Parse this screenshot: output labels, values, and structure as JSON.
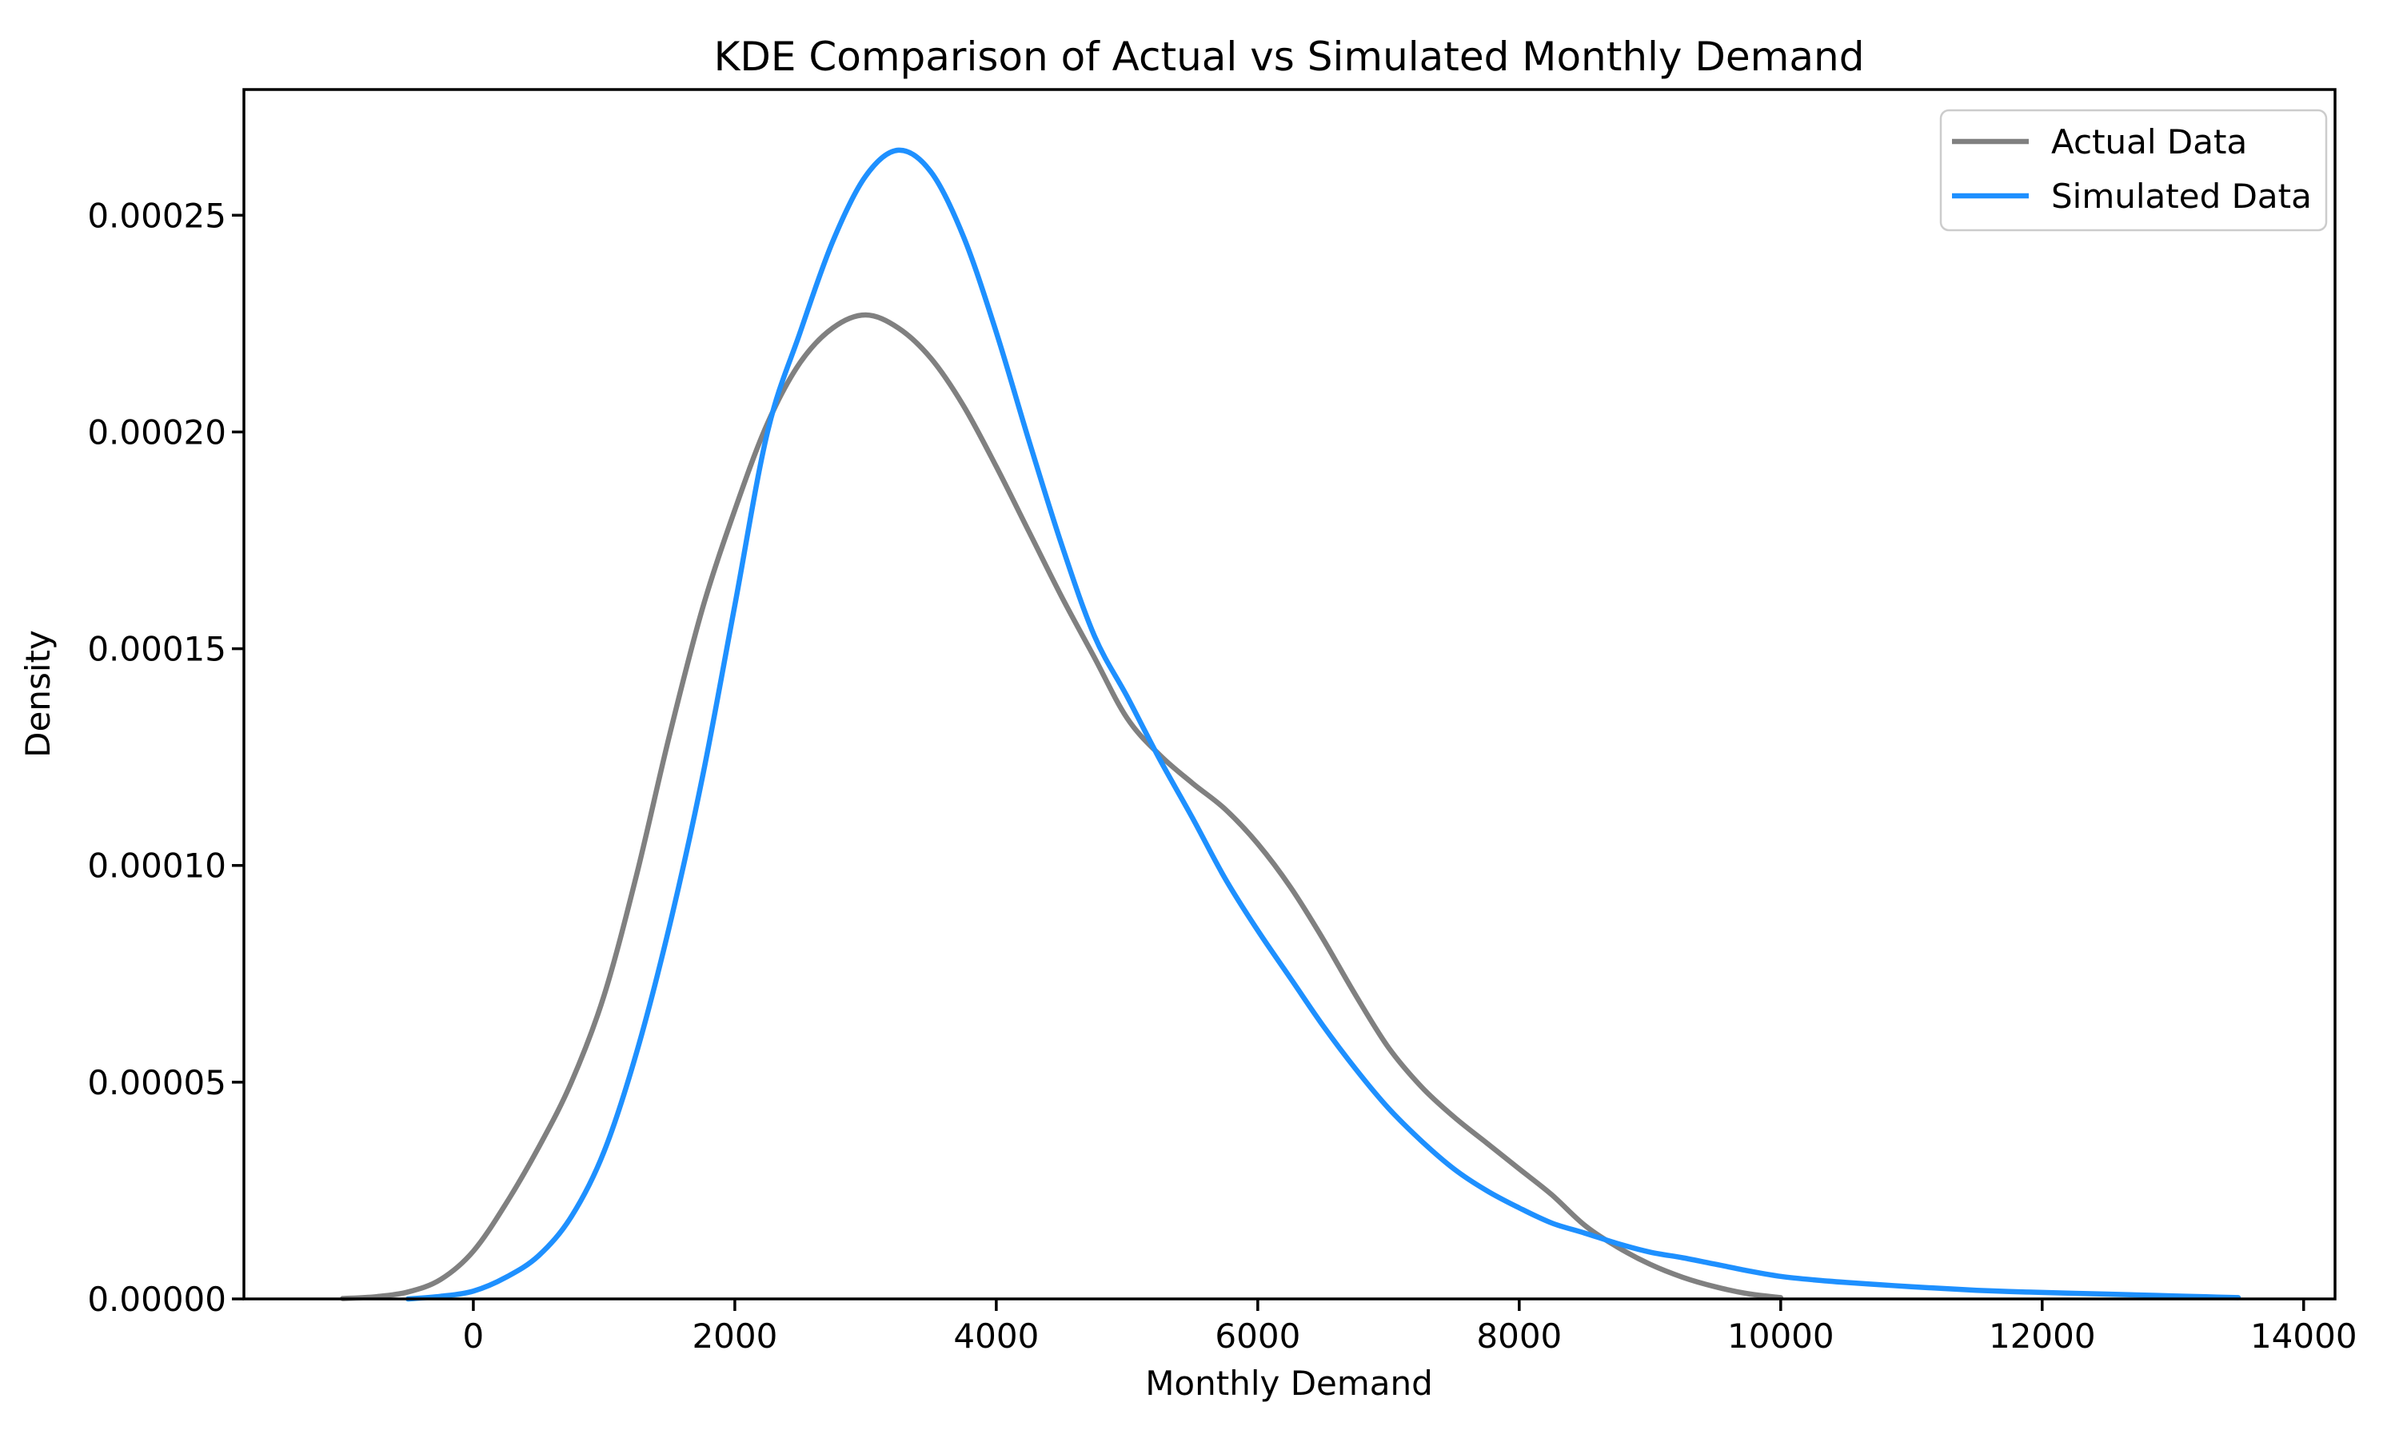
{
  "chart_data": {
    "type": "line",
    "subtype": "kde-density",
    "title": "KDE Comparison of Actual vs Simulated Monthly Demand",
    "xlabel": "Monthly Demand",
    "ylabel": "Density",
    "xlim": [
      -1755,
      14240
    ],
    "ylim": [
      0,
      0.000279
    ],
    "grid": false,
    "x_tick_values": [
      0,
      2000,
      4000,
      6000,
      8000,
      10000,
      12000,
      14000
    ],
    "x_tick_labels": [
      "0",
      "2000",
      "4000",
      "6000",
      "8000",
      "10000",
      "12000",
      "14000"
    ],
    "y_tick_values": [
      0.0,
      5e-05,
      0.0001,
      0.00015,
      0.0002,
      0.00025
    ],
    "y_tick_labels": [
      "0.00000",
      "0.00005",
      "0.00010",
      "0.00015",
      "0.00020",
      "0.00025"
    ],
    "legend": {
      "location": "upper right",
      "entries": [
        "Actual Data",
        "Simulated Data"
      ]
    },
    "series": [
      {
        "name": "Actual Data",
        "color": "#808080",
        "peak": {
          "x": 3000,
          "density": 0.000227
        },
        "x": [
          -1000,
          -750,
          -500,
          -250,
          0,
          250,
          500,
          750,
          1000,
          1250,
          1500,
          1750,
          2000,
          2250,
          2500,
          2750,
          3000,
          3250,
          3500,
          3750,
          4000,
          4250,
          4500,
          4750,
          5000,
          5250,
          5500,
          5750,
          6000,
          6250,
          6500,
          6750,
          7000,
          7250,
          7500,
          7750,
          8000,
          8250,
          8500,
          8750,
          9000,
          9250,
          9500,
          9750,
          10000
        ],
        "density": [
          1e-07,
          5e-07,
          1.6e-06,
          4.5e-06,
          1.1e-05,
          2.2e-05,
          3.5e-05,
          5e-05,
          7e-05,
          9.8e-05,
          0.00013,
          0.000159,
          0.000182,
          0.000202,
          0.000216,
          0.000224,
          0.000227,
          0.000224,
          0.000217,
          0.000206,
          0.000192,
          0.000177,
          0.000162,
          0.000148,
          0.000134,
          0.0001255,
          0.000119,
          0.000113,
          0.000105,
          9.5e-05,
          8.3e-05,
          7e-05,
          5.8e-05,
          4.9e-05,
          4.2e-05,
          3.6e-05,
          3e-05,
          2.4e-05,
          1.7e-05,
          1.2e-05,
          8e-06,
          5e-06,
          2.8e-06,
          1.2e-06,
          3e-07
        ]
      },
      {
        "name": "Simulated Data",
        "color": "#1e90ff",
        "peak": {
          "x": 3250,
          "density": 0.000265
        },
        "x": [
          -500,
          -250,
          0,
          250,
          500,
          750,
          1000,
          1250,
          1500,
          1750,
          2000,
          2250,
          2500,
          2750,
          3000,
          3250,
          3500,
          3750,
          4000,
          4250,
          4500,
          4750,
          5000,
          5250,
          5500,
          5750,
          6000,
          6250,
          6500,
          6750,
          7000,
          7250,
          7500,
          7750,
          8000,
          8250,
          8500,
          8750,
          9000,
          9250,
          9500,
          9750,
          10000,
          10250,
          10500,
          10750,
          11000,
          11250,
          11500,
          11750,
          12000,
          12250,
          12500,
          12750,
          13000,
          13250,
          13500
        ],
        "density": [
          0.0,
          6e-07,
          1.8e-06,
          5e-06,
          1e-05,
          1.9e-05,
          3.4e-05,
          5.7e-05,
          8.6e-05,
          0.00012,
          0.00016,
          0.0002,
          0.000223,
          0.000244,
          0.000259,
          0.000265,
          0.00026,
          0.000245,
          0.000223,
          0.000198,
          0.000174,
          0.000153,
          0.000139,
          0.0001245,
          0.000111,
          9.7e-05,
          8.5e-05,
          7.4e-05,
          6.3e-05,
          5.3e-05,
          4.4e-05,
          3.65e-05,
          3e-05,
          2.5e-05,
          2.1e-05,
          1.75e-05,
          1.52e-05,
          1.28e-05,
          1.08e-05,
          9.5e-06,
          8e-06,
          6.5e-06,
          5.2e-06,
          4.4e-06,
          3.8e-06,
          3.3e-06,
          2.8e-06,
          2.4e-06,
          2e-06,
          1.7e-06,
          1.5e-06,
          1.3e-06,
          1.1e-06,
          9e-07,
          7e-07,
          5e-07,
          3e-07
        ]
      }
    ],
    "colors": {
      "actual": "#808080",
      "simulated": "#1e90ff",
      "spine": "#000000",
      "legend_border": "#cccccc",
      "background": "#ffffff"
    }
  }
}
